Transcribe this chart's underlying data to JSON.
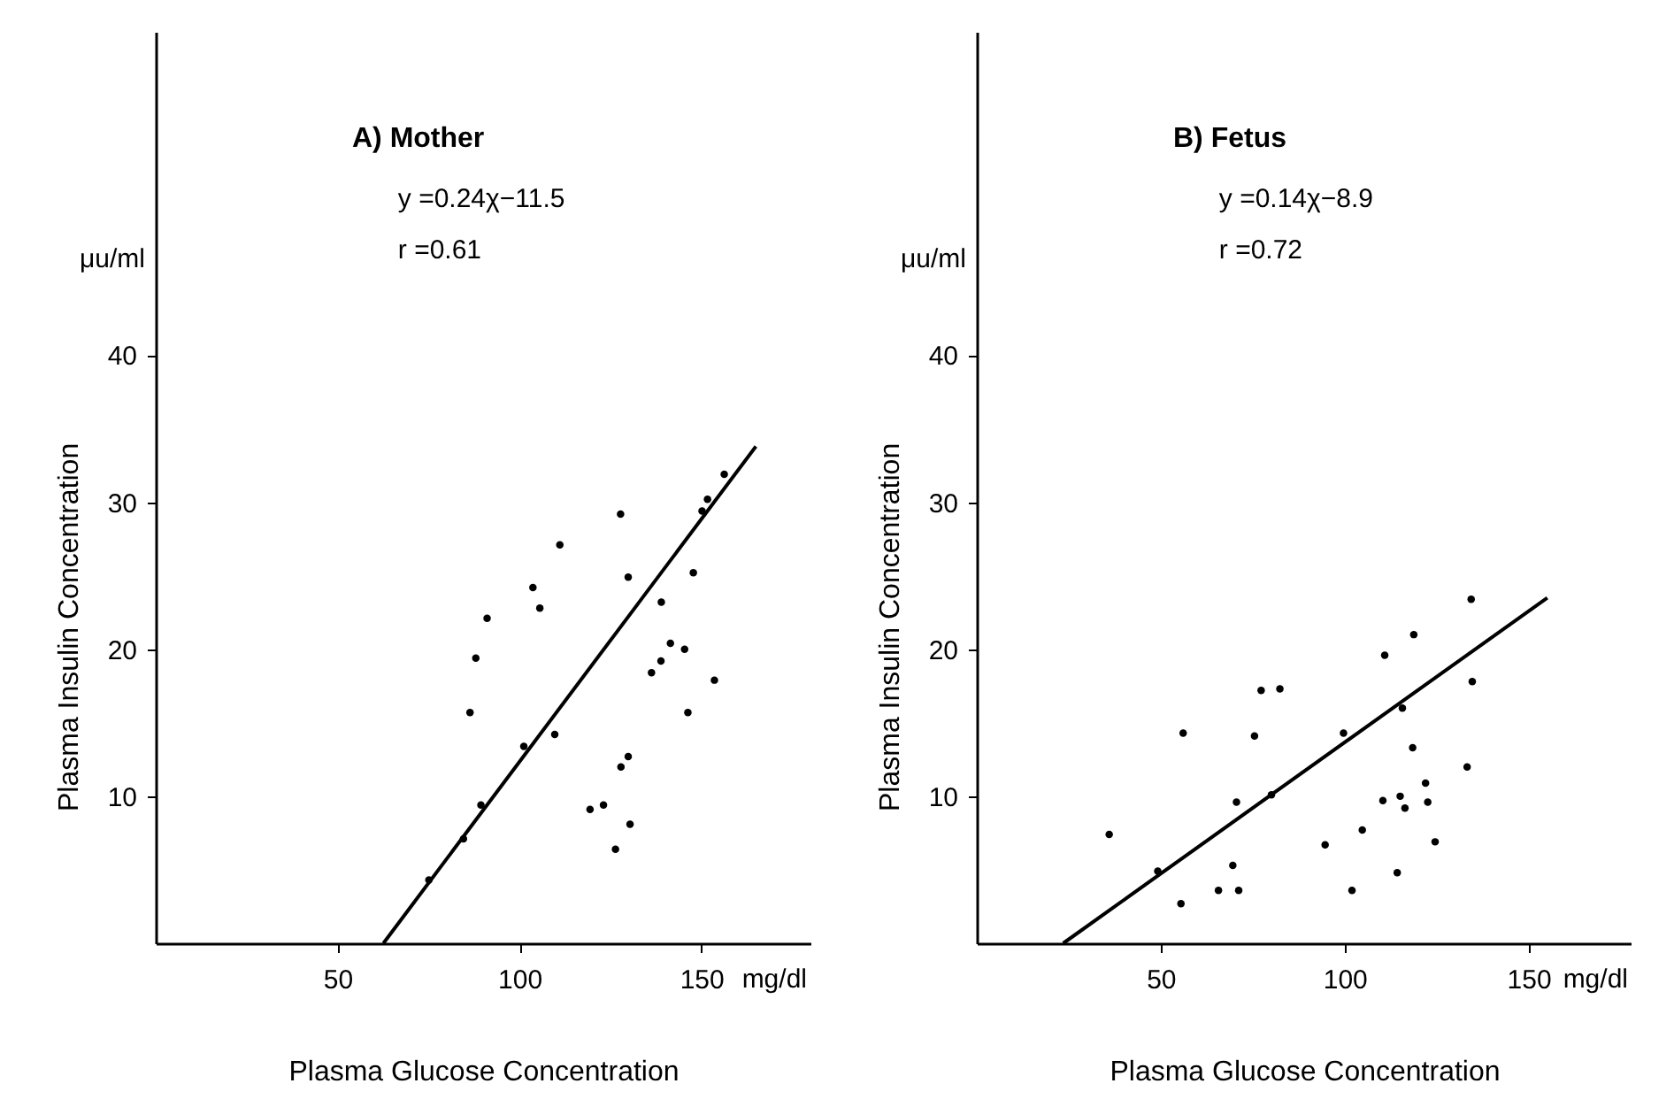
{
  "chart_data": [
    {
      "type": "scatter",
      "title": "A) Mother",
      "xlabel": "Plasma Glucose Concentration",
      "ylabel": "Plasma Insulin Concentration",
      "annotations": [
        "y =0.24χ−11.5",
        "r =0.61",
        "μu/ml",
        "mg/dl"
      ],
      "xlim": [
        0,
        180
      ],
      "ylim": [
        0,
        62
      ],
      "xticks": [
        50,
        100,
        150
      ],
      "yticks": [
        10,
        20,
        30,
        40
      ],
      "grid": false,
      "series": [
        {
          "color": "#000000",
          "x": [
            75.1,
            84.6,
            89.4,
            86.4,
            88,
            91.1,
            101.2,
            103.7,
            105.6,
            109.7,
            111.1,
            119.4,
            123.1,
            126.4,
            127.8,
            127.9,
            129.9,
            129.9,
            130.4,
            136.3,
            139.0,
            141.5,
            145.4,
            138.9,
            147.8,
            150.2,
            151.7,
            156.3,
            153.6,
            146.3
          ],
          "values": [
            4.3,
            7.1,
            9.4,
            15.7,
            19.4,
            22.1,
            13.4,
            24.2,
            22.8,
            14.2,
            27.1,
            9.1,
            9.4,
            6.4,
            29.2,
            12.0,
            12.7,
            24.9,
            8.1,
            18.4,
            23.2,
            20.4,
            20.0,
            19.2,
            25.2,
            29.4,
            30.2,
            31.9,
            17.9,
            15.7
          ]
        },
        {
          "type": "line",
          "color": "#000000",
          "x": [
            62.6,
            165.0
          ],
          "values": [
            0,
            33.8
          ]
        }
      ]
    },
    {
      "type": "scatter",
      "title": "B) Fetus",
      "xlabel": "Plasma Glucose Concentration",
      "ylabel": "Plasma Insulin Concentration",
      "annotations": [
        "y =0.14χ−8.9",
        "r =0.72",
        "μu/ml",
        "mg/dl"
      ],
      "xlim": [
        0,
        178
      ],
      "ylim": [
        0,
        62
      ],
      "xticks": [
        50,
        100,
        150
      ],
      "yticks": [
        10,
        20,
        30,
        40
      ],
      "grid": false,
      "series": [
        {
          "color": "#000000",
          "x": [
            36.0,
            49.2,
            55.5,
            56.1,
            65.7,
            69.6,
            71.2,
            70.6,
            75.5,
            77.3,
            80.1,
            82.4,
            94.7,
            99.7,
            102.0,
            104.8,
            110.4,
            110.9,
            114.3,
            115.1,
            115.7,
            116.4,
            118.5,
            118.8,
            122.0,
            122.6,
            124.6,
            133.3,
            134.7,
            134.4
          ],
          "values": [
            7.4,
            4.9,
            2.7,
            14.3,
            3.6,
            5.3,
            3.6,
            9.6,
            14.1,
            17.2,
            10.1,
            17.3,
            6.7,
            14.3,
            3.6,
            7.7,
            9.7,
            19.6,
            4.8,
            10.0,
            16.0,
            9.2,
            13.3,
            21.0,
            10.9,
            9.6,
            6.9,
            12.0,
            17.8,
            23.4
          ]
        },
        {
          "type": "line",
          "color": "#000000",
          "x": [
            23.5,
            155.1
          ],
          "values": [
            0,
            23.5
          ]
        }
      ]
    }
  ]
}
